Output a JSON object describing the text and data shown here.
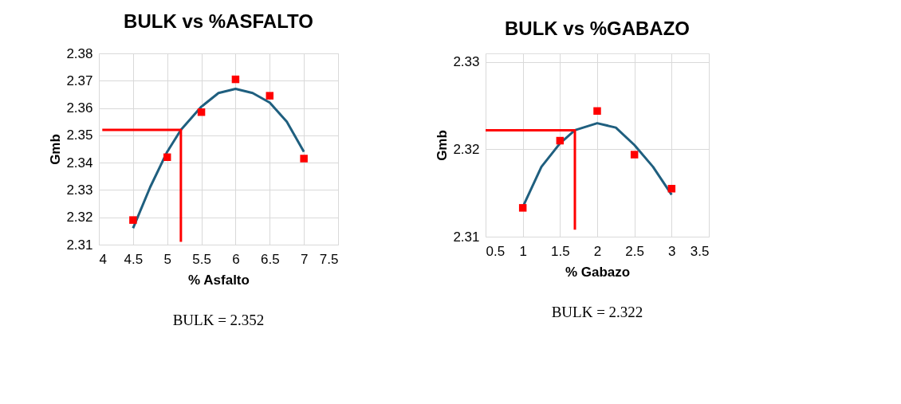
{
  "chart_data": [
    {
      "type": "scatter",
      "title": "BULK vs %ASFALTO",
      "xlabel": "% Asfalto",
      "ylabel": "Gmb",
      "xlim": [
        4,
        7.5
      ],
      "xticks": [
        4,
        4.5,
        5,
        5.5,
        6,
        6.5,
        7,
        7.5
      ],
      "ylim": [
        2.31,
        2.38
      ],
      "yticks": [
        2.31,
        2.32,
        2.33,
        2.34,
        2.35,
        2.36,
        2.37,
        2.38
      ],
      "grid": true,
      "legend": false,
      "annotations": [
        "BULK = 2.352"
      ],
      "series": [
        {
          "type": "line",
          "color": "#1f5f7f",
          "marker": "none",
          "x": [
            4.5,
            4.75,
            5,
            5.2,
            5.5,
            5.75,
            6,
            6.25,
            6.5,
            6.75,
            7
          ],
          "values": [
            2.316,
            2.331,
            2.344,
            2.352,
            2.3605,
            2.3655,
            2.367,
            2.3655,
            2.362,
            2.355,
            2.344
          ]
        },
        {
          "type": "line",
          "color": "#ff0000",
          "marker": "none",
          "x": [
            4.05,
            5.2,
            5.2
          ],
          "values": [
            2.352,
            2.352,
            2.311
          ]
        },
        {
          "color": "#ff0000",
          "marker": "square",
          "x": [
            4.5,
            5,
            5.5,
            6,
            6.5,
            7
          ],
          "values": [
            2.319,
            2.342,
            2.3585,
            2.3705,
            2.3645,
            2.3415
          ]
        }
      ]
    },
    {
      "type": "scatter",
      "title": "BULK vs %GABAZO",
      "xlabel": "%  Gabazo",
      "ylabel": "Gmb",
      "xlim": [
        0.5,
        3.5
      ],
      "xticks": [
        0.5,
        1,
        1.5,
        2,
        2.5,
        3,
        3.5
      ],
      "ylim": [
        2.31,
        2.331
      ],
      "yticks": [
        2.31,
        2.32,
        2.33
      ],
      "grid": true,
      "legend": false,
      "annotations": [
        "BULK = 2.322"
      ],
      "series": [
        {
          "type": "line",
          "color": "#1f5f7f",
          "marker": "none",
          "x": [
            1,
            1.25,
            1.5,
            1.7,
            2,
            2.25,
            2.5,
            2.75,
            3
          ],
          "values": [
            2.3134,
            2.318,
            2.3207,
            2.3222,
            2.323,
            2.3225,
            2.3205,
            2.318,
            2.3148
          ]
        },
        {
          "type": "line",
          "color": "#ff0000",
          "marker": "none",
          "x": [
            0.5,
            1.7,
            1.7
          ],
          "values": [
            2.3222,
            2.3222,
            2.3108
          ]
        },
        {
          "color": "#ff0000",
          "marker": "square",
          "x": [
            1,
            1.5,
            2,
            2.5,
            3
          ],
          "values": [
            2.3133,
            2.321,
            2.3244,
            2.3194,
            2.3155
          ]
        }
      ]
    }
  ]
}
